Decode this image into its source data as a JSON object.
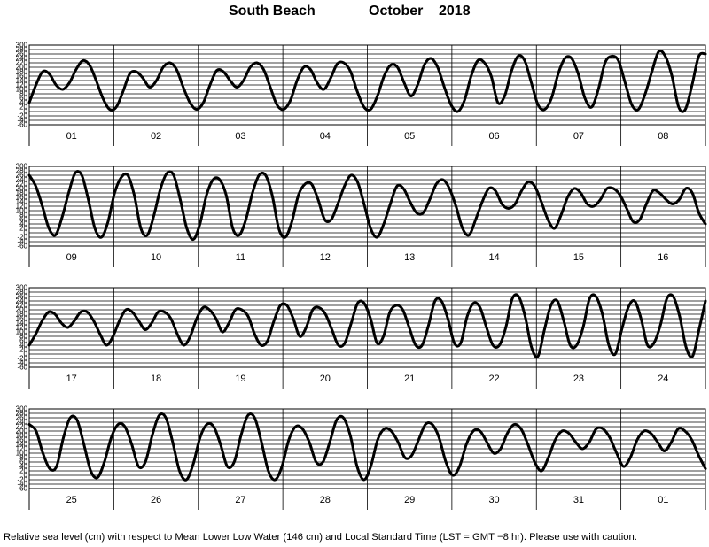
{
  "title": {
    "station": "South Beach",
    "month": "October",
    "year": "2018"
  },
  "footnote": "Relative sea level (cm) with respect to Mean Lower Low Water (146 cm) and Local Standard Time (LST = GMT −8 hr). Please use with caution.",
  "chart_data": {
    "type": "line",
    "title": "South Beach October 2018",
    "ylabel": "",
    "xlabel": "",
    "ylim": [
      -60,
      300
    ],
    "yticks": [
      300,
      280,
      260,
      240,
      220,
      200,
      180,
      160,
      140,
      120,
      100,
      80,
      60,
      40,
      20,
      0,
      -20,
      -40,
      -60
    ],
    "grid": true,
    "panels": [
      {
        "days": [
          "01",
          "02",
          "03",
          "04",
          "05",
          "06",
          "07",
          "08"
        ],
        "series": [
          {
            "values": [
              40,
              120,
              180,
              170,
              120,
              100,
              130,
              190,
              230,
              210,
              140,
              60,
              10,
              20,
              90,
              170,
              180,
              150,
              110,
              140,
              200,
              220,
              190,
              110,
              40,
              10,
              40,
              120,
              185,
              180,
              140,
              110,
              140,
              200,
              220,
              190,
              110,
              30,
              10,
              50,
              140,
              200,
              190,
              130,
              100,
              150,
              215,
              220,
              180,
              90,
              20,
              10,
              70,
              160,
              210,
              200,
              130,
              70,
              120,
              210,
              240,
              200,
              110,
              30,
              0,
              50,
              160,
              230,
              220,
              160,
              40,
              70,
              180,
              250,
              230,
              130,
              30,
              10,
              60,
              170,
              240,
              240,
              170,
              60,
              20,
              100,
              220,
              250,
              230,
              130,
              30,
              10,
              80,
              180,
              270,
              250,
              160,
              20,
              10,
              120,
              250,
              260
            ]
          }
        ]
      },
      {
        "days": [
          "09",
          "10",
          "11",
          "12",
          "13",
          "14",
          "15",
          "16"
        ],
        "series": [
          {
            "values": [
              260,
              210,
              120,
              20,
              -10,
              70,
              180,
              270,
              260,
              150,
              20,
              -20,
              50,
              180,
              250,
              260,
              170,
              20,
              -10,
              80,
              200,
              270,
              260,
              150,
              20,
              -30,
              40,
              170,
              240,
              240,
              170,
              20,
              -10,
              60,
              180,
              260,
              260,
              170,
              20,
              -20,
              50,
              170,
              220,
              220,
              150,
              60,
              60,
              130,
              210,
              260,
              230,
              130,
              20,
              -20,
              40,
              130,
              210,
              200,
              140,
              90,
              90,
              150,
              220,
              240,
              200,
              120,
              20,
              -10,
              60,
              140,
              200,
              190,
              130,
              110,
              130,
              190,
              230,
              210,
              140,
              60,
              20,
              80,
              160,
              200,
              180,
              130,
              120,
              150,
              200,
              200,
              170,
              110,
              50,
              60,
              130,
              190,
              180,
              150,
              130,
              150,
              200,
              180,
              90,
              40
            ]
          }
        ]
      },
      {
        "days": [
          "17",
          "18",
          "19",
          "20",
          "21",
          "22",
          "23",
          "24"
        ],
        "series": [
          {
            "values": [
              40,
              90,
              150,
              190,
              180,
              140,
              120,
              150,
              190,
              190,
              150,
              90,
              40,
              80,
              150,
              200,
              190,
              150,
              110,
              140,
              190,
              190,
              160,
              90,
              40,
              80,
              160,
              210,
              200,
              160,
              100,
              140,
              200,
              200,
              170,
              90,
              40,
              60,
              150,
              220,
              220,
              160,
              80,
              120,
              200,
              210,
              180,
              110,
              40,
              50,
              140,
              230,
              230,
              160,
              50,
              80,
              190,
              220,
              200,
              120,
              40,
              40,
              130,
              240,
              240,
              160,
              50,
              50,
              170,
              230,
              210,
              120,
              40,
              40,
              120,
              250,
              260,
              170,
              30,
              -10,
              110,
              220,
              240,
              150,
              40,
              40,
              120,
              250,
              260,
              180,
              40,
              0,
              110,
              210,
              240,
              160,
              40,
              50,
              130,
              250,
              260,
              170,
              30,
              -10,
              110,
              240
            ]
          }
        ]
      },
      {
        "days": [
          "25",
          "26",
          "27",
          "28",
          "29",
          "30",
          "31",
          "01"
        ],
        "series": [
          {
            "values": [
              230,
              200,
              100,
              30,
              40,
              170,
              260,
              250,
              140,
              20,
              -10,
              60,
              170,
              230,
              220,
              140,
              40,
              60,
              180,
              270,
              260,
              150,
              20,
              -20,
              50,
              170,
              230,
              220,
              140,
              40,
              60,
              180,
              270,
              260,
              150,
              20,
              -20,
              40,
              160,
              220,
              210,
              150,
              60,
              60,
              150,
              250,
              260,
              180,
              40,
              -20,
              40,
              160,
              210,
              200,
              150,
              80,
              90,
              160,
              230,
              230,
              170,
              60,
              0,
              40,
              140,
              200,
              200,
              150,
              100,
              120,
              190,
              230,
              210,
              140,
              60,
              20,
              80,
              160,
              200,
              190,
              150,
              120,
              150,
              210,
              210,
              170,
              100,
              40,
              80,
              160,
              200,
              190,
              150,
              110,
              150,
              210,
              200,
              160,
              90,
              30
            ]
          }
        ]
      }
    ]
  }
}
